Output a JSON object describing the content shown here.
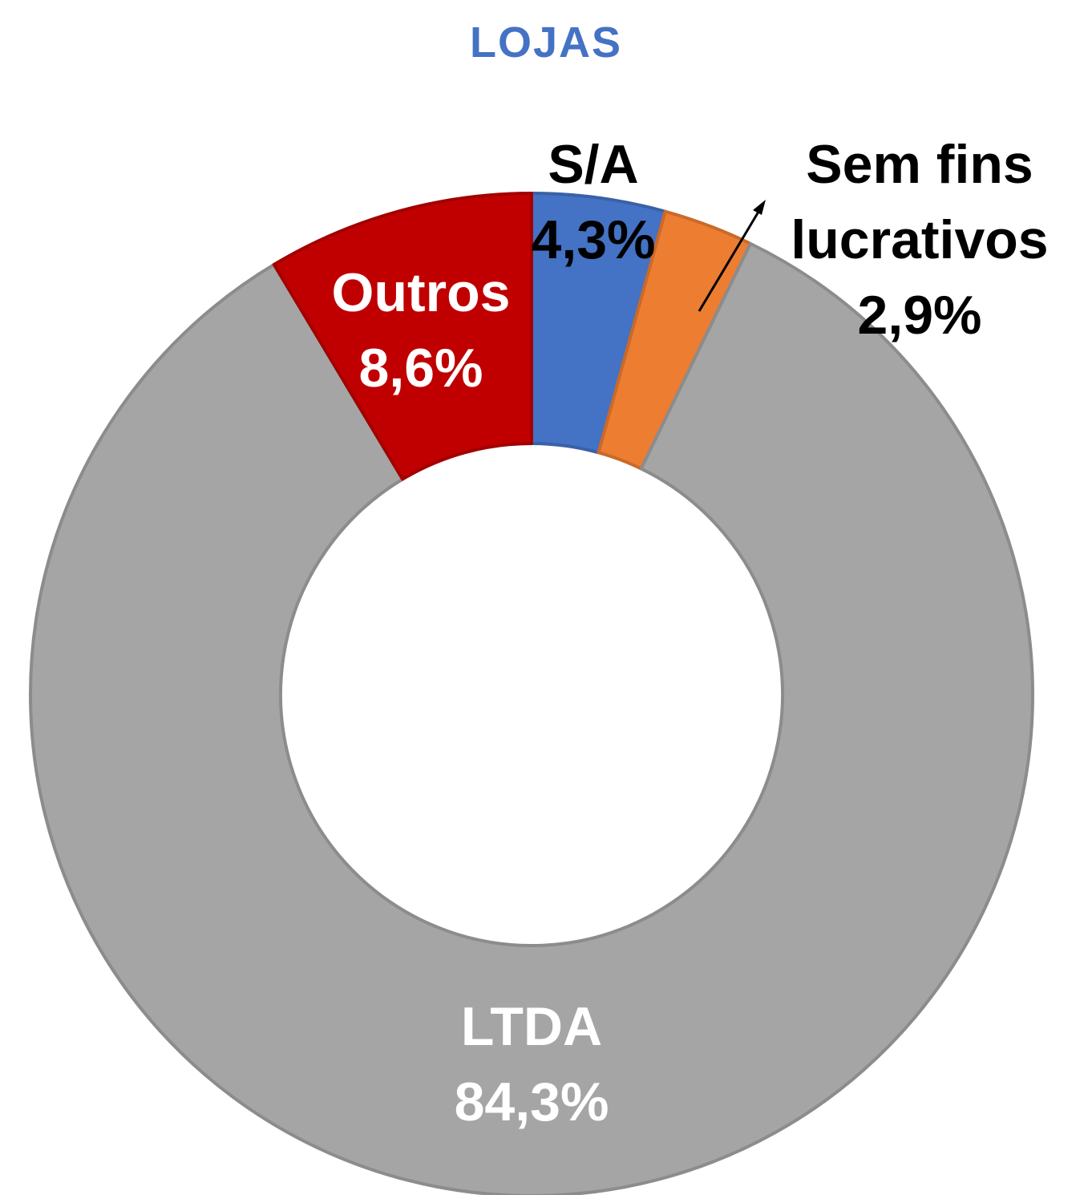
{
  "chart_data": {
    "type": "donut",
    "title": "LOJAS",
    "categories": [
      "S/A",
      "Sem fins lucrativos",
      "LTDA",
      "Outros"
    ],
    "values": [
      4.3,
      2.9,
      84.3,
      8.6
    ],
    "value_labels": [
      "4,3%",
      "2,9%",
      "84,3%",
      "8,6%"
    ],
    "colors": [
      "#4472c4",
      "#ed7d31",
      "#a5a5a5",
      "#c00000"
    ]
  }
}
